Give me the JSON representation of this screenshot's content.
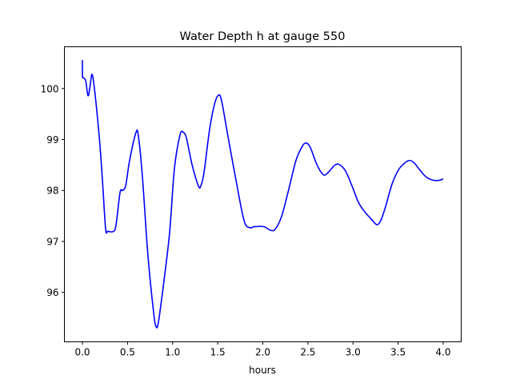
{
  "chart_data": {
    "type": "line",
    "title": "Water Depth h at gauge 550",
    "xlabel": "hours",
    "ylabel": "",
    "xlim": [
      -0.2,
      4.2
    ],
    "ylim": [
      95.03,
      100.82
    ],
    "xticks": [
      0.0,
      0.5,
      1.0,
      1.5,
      2.0,
      2.5,
      3.0,
      3.5,
      4.0
    ],
    "xtick_labels": [
      "0.0",
      "0.5",
      "1.0",
      "1.5",
      "2.0",
      "2.5",
      "3.0",
      "3.5",
      "4.0"
    ],
    "yticks": [
      96,
      97,
      98,
      99,
      100
    ],
    "ytick_labels": [
      "96",
      "97",
      "98",
      "99",
      "100"
    ],
    "grid": false,
    "series": [
      {
        "name": "h",
        "color": "#0000ff",
        "x": [
          0,
          0,
          0.035,
          0.062,
          0.085,
          0.106,
          0.133,
          0.186,
          0.222,
          0.257,
          0.284,
          0.346,
          0.373,
          0.417,
          0.443,
          0.479,
          0.523,
          0.594,
          0.621,
          0.665,
          0.727,
          0.789,
          0.816,
          0.843,
          0.905,
          0.967,
          1.02,
          1.082,
          1.117,
          1.153,
          1.215,
          1.286,
          1.313,
          1.348,
          1.41,
          1.464,
          1.508,
          1.543,
          1.614,
          1.703,
          1.792,
          1.854,
          1.907,
          2.013,
          2.084,
          2.137,
          2.208,
          2.279,
          2.368,
          2.439,
          2.483,
          2.528,
          2.599,
          2.67,
          2.723,
          2.794,
          2.847,
          2.918,
          2.989,
          3.06,
          3.131,
          3.202,
          3.264,
          3.308,
          3.361,
          3.432,
          3.503,
          3.574,
          3.627,
          3.68,
          3.742,
          3.814,
          3.893,
          3.964,
          4.0
        ],
        "y": [
          100.56,
          100.22,
          100.16,
          99.86,
          100.05,
          100.28,
          100.0,
          99.06,
          98.2,
          97.25,
          97.2,
          97.2,
          97.33,
          97.96,
          98.0,
          98.09,
          98.59,
          99.14,
          99.06,
          98.27,
          96.71,
          95.61,
          95.33,
          95.42,
          96.24,
          97.18,
          98.43,
          99.09,
          99.14,
          99.03,
          98.51,
          98.09,
          98.09,
          98.35,
          99.2,
          99.69,
          99.87,
          99.76,
          99.06,
          98.2,
          97.41,
          97.27,
          97.29,
          97.29,
          97.22,
          97.24,
          97.49,
          97.96,
          98.59,
          98.87,
          98.93,
          98.84,
          98.51,
          98.31,
          98.35,
          98.49,
          98.51,
          98.38,
          98.09,
          97.77,
          97.58,
          97.44,
          97.33,
          97.41,
          97.68,
          98.12,
          98.4,
          98.54,
          98.59,
          98.54,
          98.4,
          98.26,
          98.2,
          98.2,
          98.23
        ]
      }
    ]
  }
}
